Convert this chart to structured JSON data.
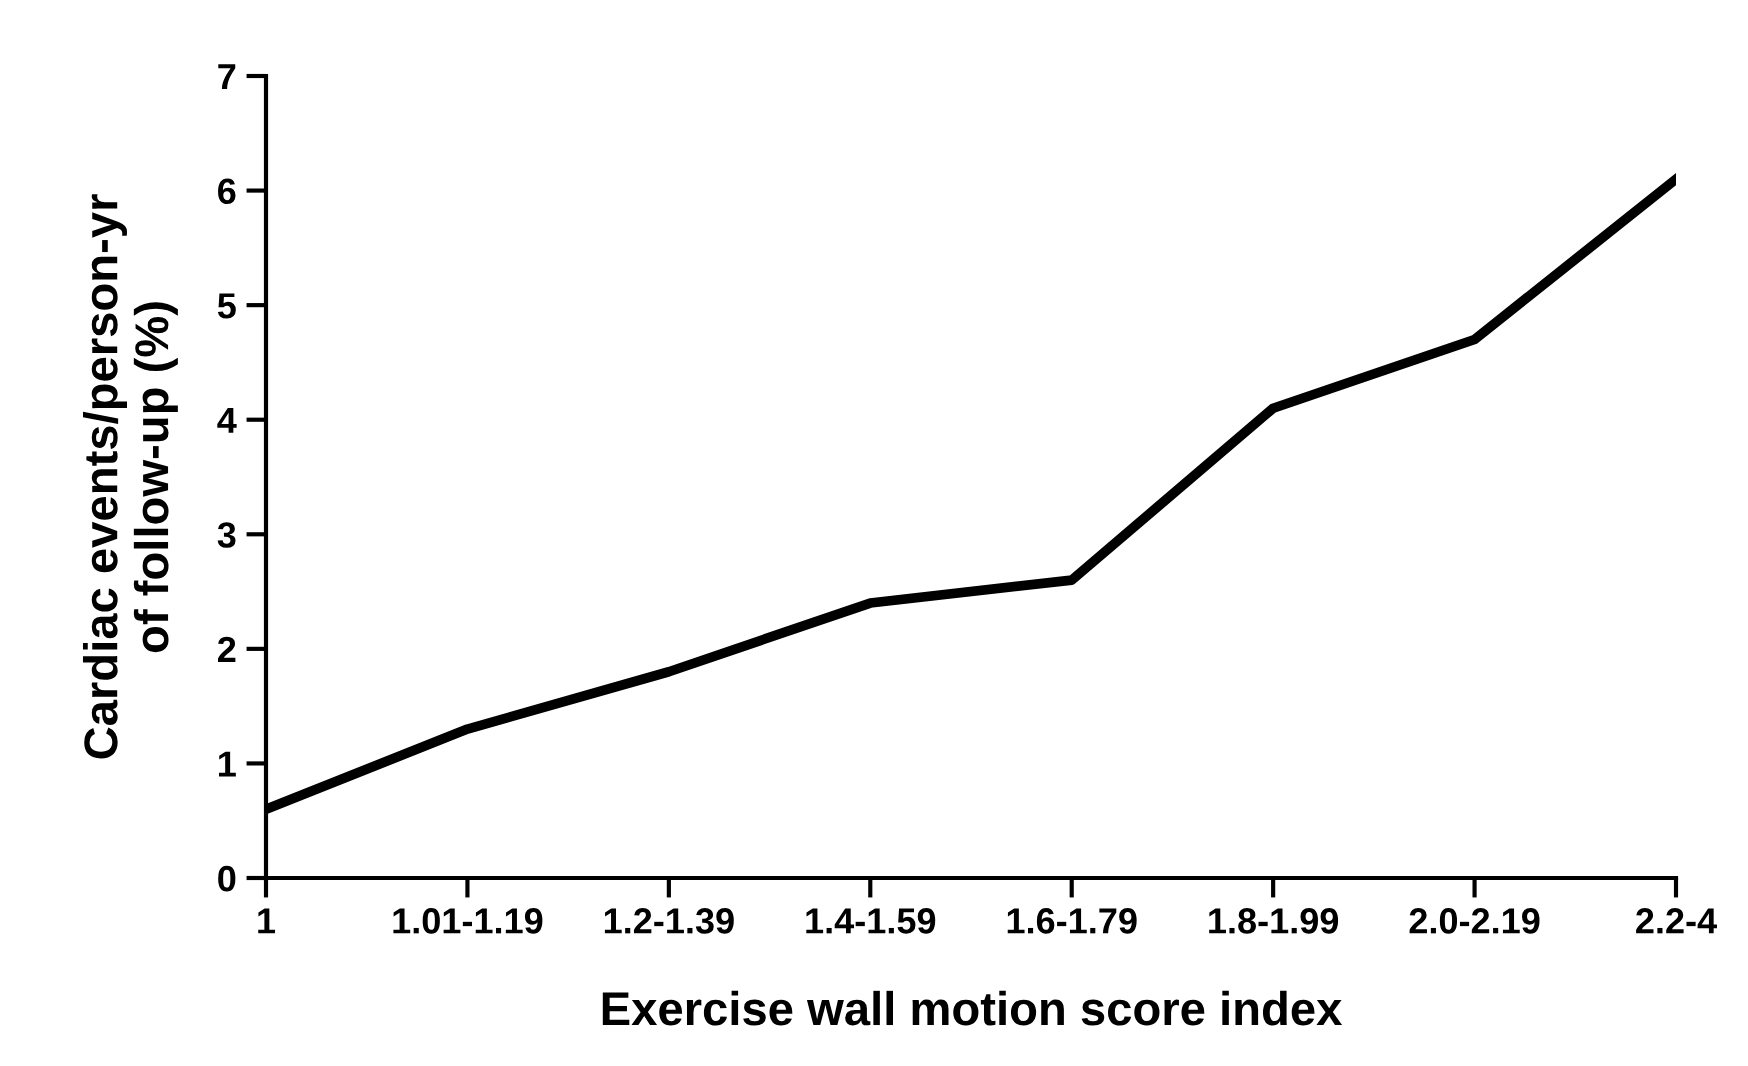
{
  "chart_data": {
    "type": "line",
    "xlabel": "Exercise wall motion score index",
    "ylabel": "Cardiac events/person-yr\nof follow-up (%)",
    "categories": [
      "1",
      "1.01-1.19",
      "1.2-1.39",
      "1.4-1.59",
      "1.6-1.79",
      "1.8-1.99",
      "2.0-2.19",
      "2.2-4"
    ],
    "series": [
      {
        "color": "#000000",
        "values": [
          0.6,
          1.3,
          1.8,
          2.4,
          2.6,
          4.1,
          4.7,
          6.1
        ]
      }
    ],
    "ylim": [
      0,
      7
    ],
    "yticks": [
      0,
      1,
      2,
      3,
      4,
      5,
      6,
      7
    ],
    "grid": false,
    "legend": false,
    "marker": "none",
    "line_style": "solid"
  }
}
